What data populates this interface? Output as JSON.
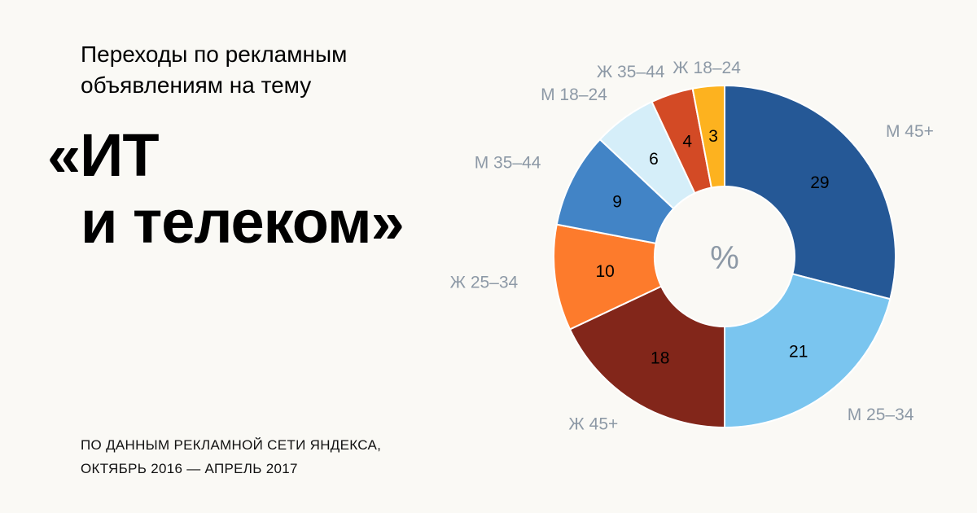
{
  "header": {
    "subtitle_line1": "Переходы по рекламным",
    "subtitle_line2": "объявлениям на тему",
    "title_line1": "«ИТ",
    "title_line2": "и телеком»"
  },
  "footer": {
    "source_line1": "ПО ДАННЫМ РЕКЛАМНОЙ СЕТИ ЯНДЕКСА,",
    "source_line2": "ОКТЯБРЬ 2016 — АПРЕЛЬ 2017"
  },
  "chart_data": {
    "type": "pie",
    "donut": true,
    "center_label": "%",
    "slices": [
      {
        "label": "М 45+",
        "value": 29,
        "color": "#255896"
      },
      {
        "label": "М 25–34",
        "value": 21,
        "color": "#7ac5ef"
      },
      {
        "label": "Ж 45+",
        "value": 18,
        "color": "#82261a"
      },
      {
        "label": "Ж 25–34",
        "value": 10,
        "color": "#fd7b2c"
      },
      {
        "label": "М 35–44",
        "value": 9,
        "color": "#4284c6"
      },
      {
        "label": "М 18–24",
        "value": 6,
        "color": "#d5eef9"
      },
      {
        "label": "Ж 35–44",
        "value": 4,
        "color": "#d34a25"
      },
      {
        "label": "Ж 18–24",
        "value": 3,
        "color": "#fdb21f"
      }
    ]
  }
}
